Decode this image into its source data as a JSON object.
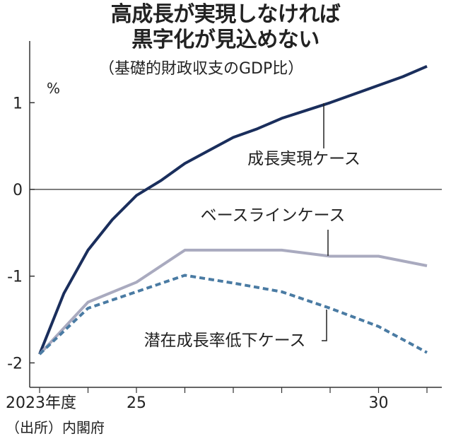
{
  "title_lines": [
    "高成長が実現しなければ",
    "黒字化が見込めない"
  ],
  "subtitle": "（基礎的財政収支のGDP比）",
  "unit": "%",
  "source": "（出所）内閣府",
  "chart_data": {
    "type": "line",
    "x": [
      2023,
      2024,
      2025,
      2026,
      2027,
      2028,
      2029,
      2030,
      2031
    ],
    "x_tick_labels": [
      {
        "x": 2023,
        "label": "2023年度"
      },
      {
        "x": 2025,
        "label": "25"
      },
      {
        "x": 2030,
        "label": "30"
      }
    ],
    "y_ticks": [
      1,
      0,
      -1,
      -2
    ],
    "y_tick_labels": [
      "1",
      "0",
      "-1",
      "-2"
    ],
    "xlim": [
      2023,
      2031.2
    ],
    "ylim": [
      -2.2,
      1.75
    ],
    "series": [
      {
        "name": "成長実現ケース",
        "color": "#1a2e5c",
        "style": "solid",
        "points": [
          [
            2023,
            -1.9
          ],
          [
            2023.5,
            -1.2
          ],
          [
            2024,
            -0.7
          ],
          [
            2024.5,
            -0.35
          ],
          [
            2025,
            -0.07
          ],
          [
            2025.5,
            0.1
          ],
          [
            2026,
            0.3
          ],
          [
            2026.5,
            0.45
          ],
          [
            2027,
            0.6
          ],
          [
            2027.5,
            0.7
          ],
          [
            2028,
            0.82
          ],
          [
            2028.5,
            0.91
          ],
          [
            2029,
            1.0
          ],
          [
            2029.5,
            1.1
          ],
          [
            2030,
            1.2
          ],
          [
            2030.5,
            1.3
          ],
          [
            2031,
            1.42
          ]
        ]
      },
      {
        "name": "ベースラインケース",
        "color": "#a9aabf",
        "style": "solid",
        "points": [
          [
            2023,
            -1.9
          ],
          [
            2024,
            -1.3
          ],
          [
            2025,
            -1.07
          ],
          [
            2026,
            -0.7
          ],
          [
            2027,
            -0.7
          ],
          [
            2028,
            -0.7
          ],
          [
            2029,
            -0.77
          ],
          [
            2030,
            -0.77
          ],
          [
            2031,
            -0.88
          ]
        ]
      },
      {
        "name": "潜在成長率低下ケース",
        "color": "#4a7ba3",
        "style": "dashed",
        "points": [
          [
            2023,
            -1.9
          ],
          [
            2024,
            -1.37
          ],
          [
            2025,
            -1.18
          ],
          [
            2026,
            -0.99
          ],
          [
            2027,
            -1.08
          ],
          [
            2028,
            -1.18
          ],
          [
            2029,
            -1.37
          ],
          [
            2030,
            -1.58
          ],
          [
            2031,
            -1.88
          ]
        ]
      }
    ],
    "zero_line": true,
    "grid": false
  }
}
